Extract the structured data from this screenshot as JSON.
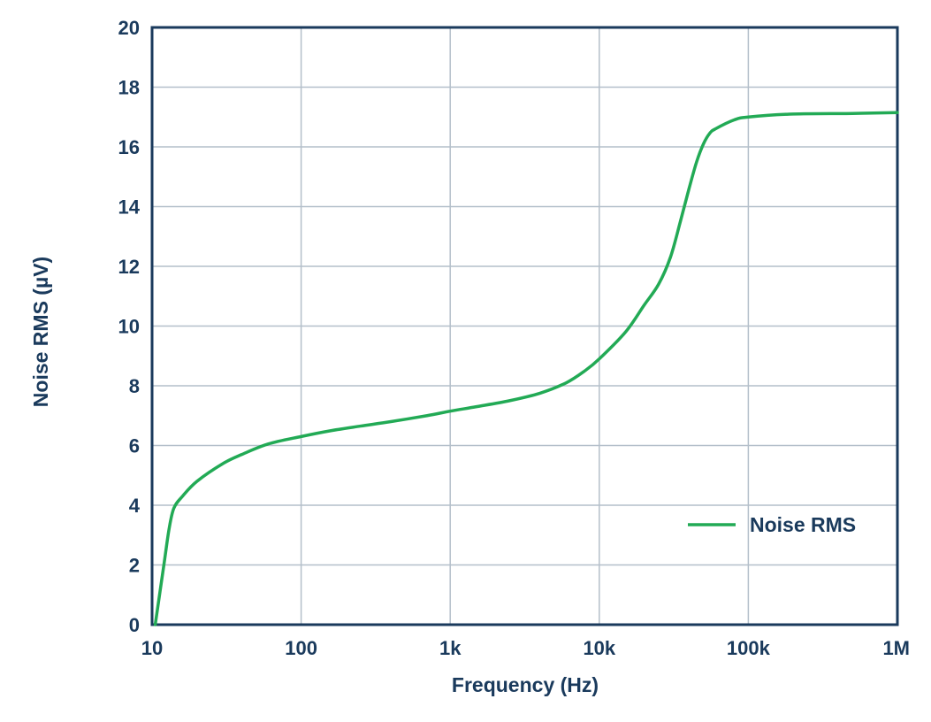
{
  "chart_data": {
    "type": "line",
    "title": "",
    "xlabel": "Frequency (Hz)",
    "ylabel": "Noise RMS (µV)",
    "x_scale": "log",
    "xlim": [
      10,
      1000000
    ],
    "ylim": [
      0,
      20
    ],
    "x_ticks": [
      {
        "value": 10,
        "label": "10"
      },
      {
        "value": 100,
        "label": "100"
      },
      {
        "value": 1000,
        "label": "1k"
      },
      {
        "value": 10000,
        "label": "10k"
      },
      {
        "value": 100000,
        "label": "100k"
      },
      {
        "value": 1000000,
        "label": "1M"
      }
    ],
    "y_ticks": [
      {
        "value": 0,
        "label": "0"
      },
      {
        "value": 2,
        "label": "2"
      },
      {
        "value": 4,
        "label": "4"
      },
      {
        "value": 6,
        "label": "6"
      },
      {
        "value": 8,
        "label": "8"
      },
      {
        "value": 10,
        "label": "10"
      },
      {
        "value": 12,
        "label": "12"
      },
      {
        "value": 14,
        "label": "14"
      },
      {
        "value": 16,
        "label": "16"
      },
      {
        "value": 18,
        "label": "18"
      },
      {
        "value": 20,
        "label": "20"
      }
    ],
    "grid": true,
    "legend_position": "bottom-right",
    "series": [
      {
        "name": "Noise RMS",
        "color": "#22aa55",
        "x": [
          10.5,
          12,
          13,
          14,
          16,
          20,
          30,
          40,
          60,
          100,
          160,
          250,
          400,
          700,
          1000,
          1500,
          2500,
          4000,
          6000,
          8000,
          10000,
          15000,
          20000,
          25000,
          30000,
          35000,
          40000,
          45000,
          50000,
          55000,
          60000,
          80000,
          100000,
          200000,
          500000,
          1000000
        ],
        "y": [
          0,
          2,
          3.2,
          3.9,
          4.3,
          4.8,
          5.4,
          5.7,
          6.05,
          6.3,
          6.5,
          6.65,
          6.8,
          7.0,
          7.15,
          7.3,
          7.5,
          7.75,
          8.1,
          8.5,
          8.9,
          9.8,
          10.7,
          11.4,
          12.3,
          13.5,
          14.6,
          15.5,
          16.1,
          16.45,
          16.6,
          16.9,
          17.0,
          17.1,
          17.12,
          17.15
        ]
      }
    ]
  }
}
